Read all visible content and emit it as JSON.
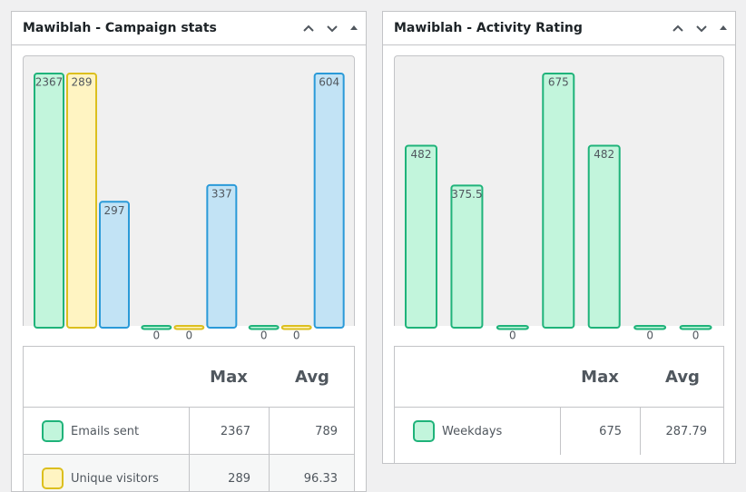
{
  "widgets": [
    {
      "title": "Mawiblah - Campaign stats",
      "chart": {
        "type": "bar",
        "series": [
          {
            "color": "#1fb37a",
            "fill": "#c2f5dc",
            "values": [
              2367,
              0,
              0
            ]
          },
          {
            "color": "#dcbf1e",
            "fill": "#fff4c2",
            "values": [
              289,
              0,
              0
            ]
          },
          {
            "color": "#2a9ad8",
            "fill": "#c2e3f5",
            "values": [
              297,
              337,
              604
            ]
          }
        ]
      },
      "table": {
        "header": [
          "Max",
          "Avg"
        ],
        "rows": [
          [
            "Emails sent",
            2367,
            789
          ],
          [
            "Unique visitors",
            289,
            96.33
          ]
        ]
      }
    },
    {
      "title": "Mawiblah - Activity Rating",
      "chart": {
        "type": "bar",
        "series": [
          {
            "color": "#1fb37a",
            "fill": "#c2f5dc",
            "values": [
              482,
              375.5,
              0,
              675,
              482,
              0,
              0
            ]
          }
        ]
      },
      "table": {
        "header": [
          "Max",
          "Avg"
        ],
        "rows": [
          [
            "Weekdays",
            675,
            287.79
          ]
        ]
      }
    }
  ]
}
